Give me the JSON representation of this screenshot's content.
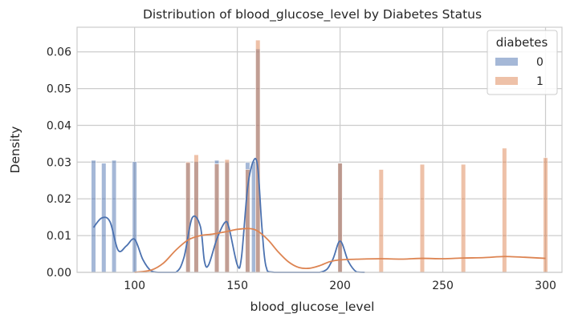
{
  "chart_data": {
    "type": "histogram",
    "title": "Distribution of blood_glucose_level by Diabetes Status",
    "xlabel": "blood_glucose_level",
    "ylabel": "Density",
    "xlim": [
      72,
      308
    ],
    "ylim": [
      0,
      0.0667
    ],
    "xticks": [
      100,
      150,
      200,
      250,
      300
    ],
    "yticks": [
      0.0,
      0.01,
      0.02,
      0.03,
      0.04,
      0.05,
      0.06
    ],
    "ytick_labels": [
      "0.00",
      "0.01",
      "0.02",
      "0.03",
      "0.04",
      "0.05",
      "0.06"
    ],
    "grid": true,
    "legend": {
      "title": "diabetes",
      "placement": "top-right",
      "entries": [
        "0",
        "1"
      ]
    },
    "bin_width": 2.2,
    "series": [
      {
        "name": "0",
        "color": "#4c72b0",
        "bars": [
          {
            "x": 80,
            "density": 0.0305
          },
          {
            "x": 85,
            "density": 0.0297
          },
          {
            "x": 90,
            "density": 0.0305
          },
          {
            "x": 100,
            "density": 0.0301
          },
          {
            "x": 126,
            "density": 0.0298
          },
          {
            "x": 130,
            "density": 0.0301
          },
          {
            "x": 140,
            "density": 0.0305
          },
          {
            "x": 145,
            "density": 0.0299
          },
          {
            "x": 155,
            "density": 0.0299
          },
          {
            "x": 158,
            "density": 0.0302
          },
          {
            "x": 160,
            "density": 0.0608
          },
          {
            "x": 200,
            "density": 0.0298
          }
        ],
        "kde": [
          [
            80,
            0.0122
          ],
          [
            84,
            0.0148
          ],
          [
            88,
            0.0138
          ],
          [
            92,
            0.006
          ],
          [
            96,
            0.0072
          ],
          [
            100,
            0.009
          ],
          [
            104,
            0.0035
          ],
          [
            108,
            0.0004
          ],
          [
            112,
            0.0
          ],
          [
            120,
            0.0
          ],
          [
            124,
            0.004
          ],
          [
            128,
            0.0148
          ],
          [
            132,
            0.0125
          ],
          [
            134,
            0.003
          ],
          [
            136,
            0.002
          ],
          [
            140,
            0.009
          ],
          [
            144,
            0.0136
          ],
          [
            146,
            0.012
          ],
          [
            150,
            0.002
          ],
          [
            152,
            0.004
          ],
          [
            155,
            0.023
          ],
          [
            158,
            0.0305
          ],
          [
            160,
            0.0282
          ],
          [
            162,
            0.012
          ],
          [
            164,
            0.0015
          ],
          [
            168,
            0.0
          ],
          [
            190,
            0.0
          ],
          [
            196,
            0.003
          ],
          [
            200,
            0.0085
          ],
          [
            204,
            0.003
          ],
          [
            208,
            0.0001
          ],
          [
            212,
            0.0
          ]
        ]
      },
      {
        "name": "1",
        "color": "#dd8452",
        "bars": [
          {
            "x": 126,
            "density": 0.03
          },
          {
            "x": 130,
            "density": 0.032
          },
          {
            "x": 140,
            "density": 0.0295
          },
          {
            "x": 145,
            "density": 0.0307
          },
          {
            "x": 155,
            "density": 0.028
          },
          {
            "x": 160,
            "density": 0.0632
          },
          {
            "x": 200,
            "density": 0.0297
          },
          {
            "x": 220,
            "density": 0.028
          },
          {
            "x": 240,
            "density": 0.0294
          },
          {
            "x": 260,
            "density": 0.0294
          },
          {
            "x": 280,
            "density": 0.0338
          },
          {
            "x": 300,
            "density": 0.0312
          }
        ],
        "kde": [
          [
            100,
            0.0
          ],
          [
            108,
            0.0006
          ],
          [
            114,
            0.0025
          ],
          [
            120,
            0.006
          ],
          [
            126,
            0.0088
          ],
          [
            132,
            0.01
          ],
          [
            138,
            0.0104
          ],
          [
            144,
            0.011
          ],
          [
            150,
            0.0117
          ],
          [
            156,
            0.0119
          ],
          [
            160,
            0.0112
          ],
          [
            165,
            0.0088
          ],
          [
            170,
            0.0055
          ],
          [
            175,
            0.0028
          ],
          [
            180,
            0.0013
          ],
          [
            185,
            0.0011
          ],
          [
            190,
            0.0018
          ],
          [
            195,
            0.0029
          ],
          [
            200,
            0.0034
          ],
          [
            210,
            0.0036
          ],
          [
            220,
            0.0037
          ],
          [
            230,
            0.0036
          ],
          [
            240,
            0.0038
          ],
          [
            250,
            0.0037
          ],
          [
            260,
            0.0039
          ],
          [
            270,
            0.004
          ],
          [
            280,
            0.0043
          ],
          [
            290,
            0.0041
          ],
          [
            300,
            0.0038
          ]
        ]
      }
    ]
  }
}
